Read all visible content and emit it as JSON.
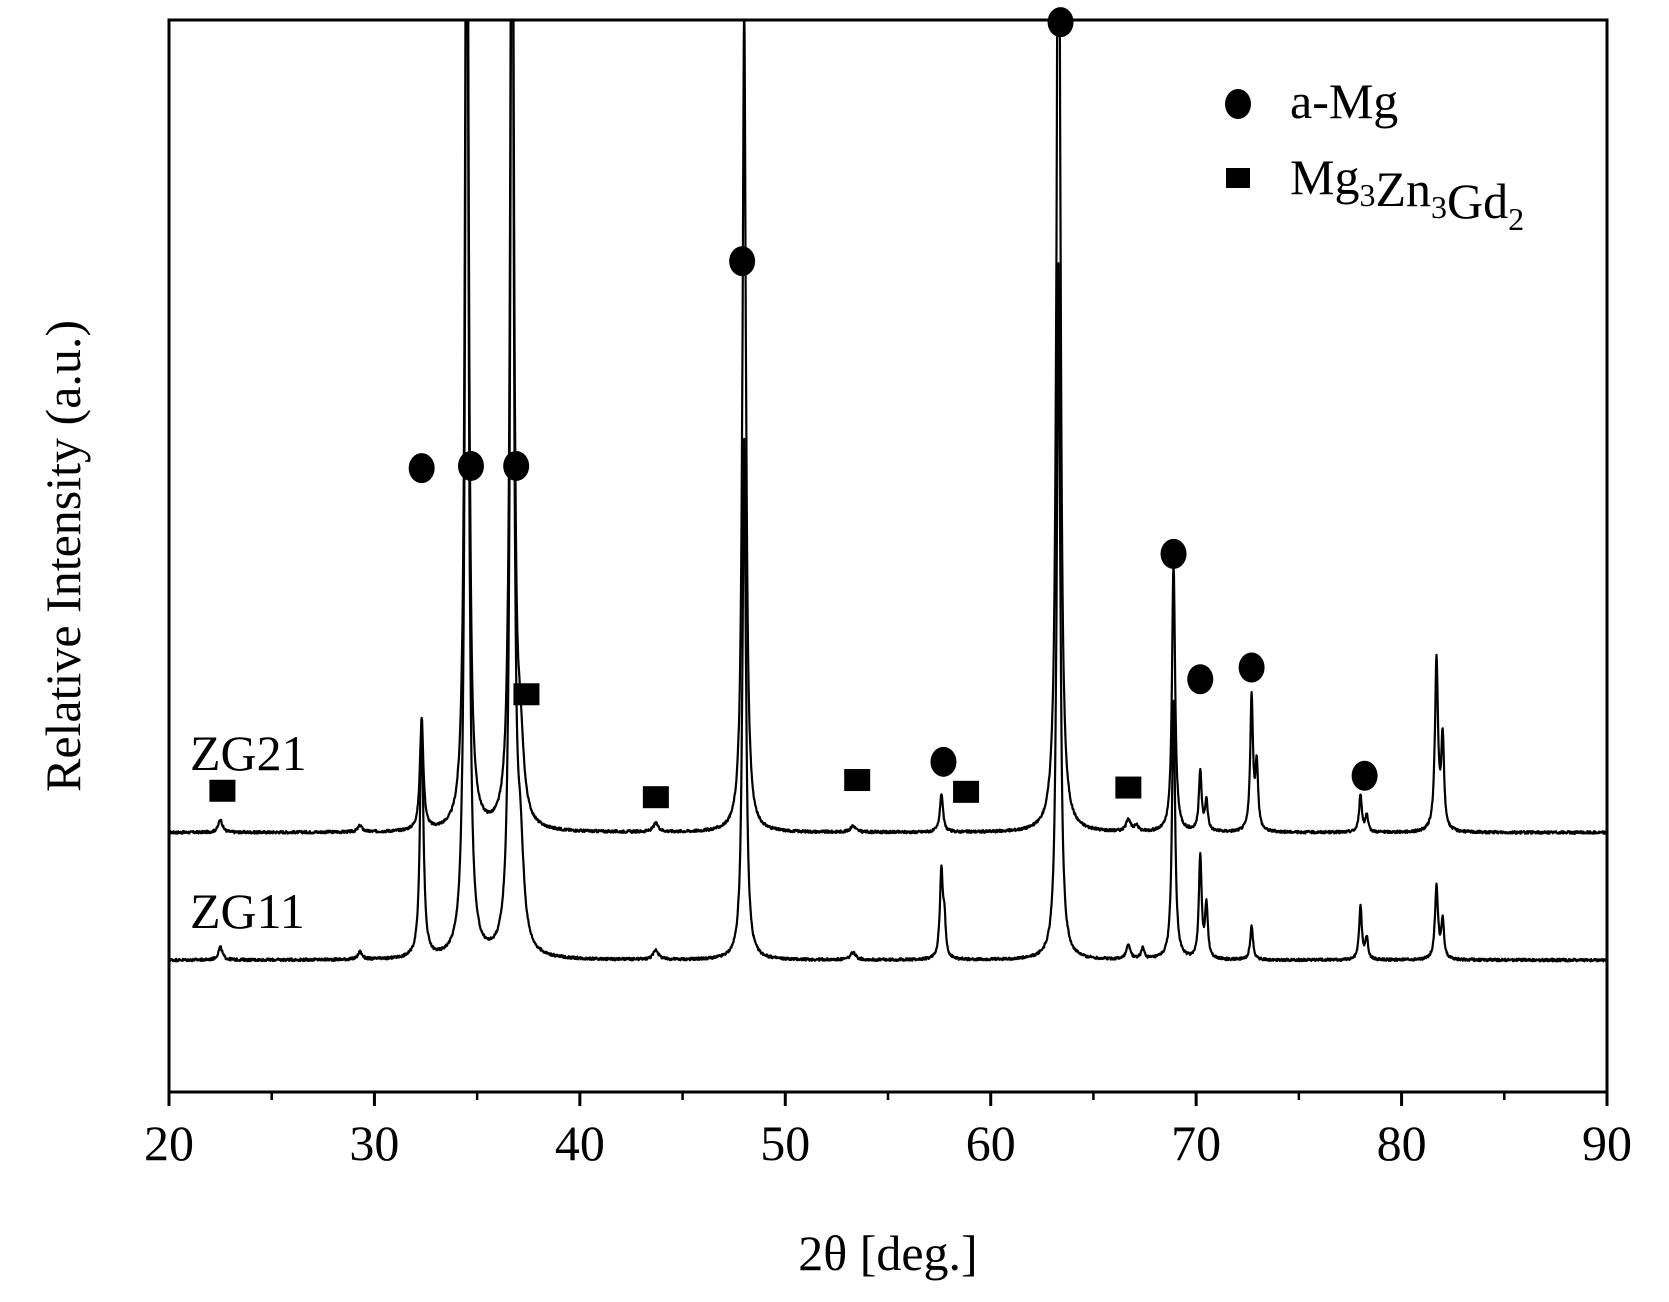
{
  "chart_data": {
    "type": "line",
    "xlabel": "2θ [deg.]",
    "ylabel": "Relative Intensity (a.u.)",
    "xlim": [
      20,
      90
    ],
    "ylim": [
      0,
      100
    ],
    "x_ticks": [
      20,
      30,
      40,
      50,
      60,
      70,
      80,
      90
    ],
    "x_minor_ticks": [
      25,
      35,
      45,
      55,
      65,
      75,
      85
    ],
    "y_ticks_shown": false,
    "grid": false,
    "legend": {
      "placement": "top-right",
      "entries": [
        {
          "marker": "circle",
          "label": "a-Mg"
        },
        {
          "marker": "square",
          "label_parts": [
            {
              "text": "Mg",
              "sub": false
            },
            {
              "text": "3",
              "sub": true
            },
            {
              "text": "Zn",
              "sub": false
            },
            {
              "text": "3",
              "sub": true
            },
            {
              "text": "Gd",
              "sub": false
            },
            {
              "text": "2",
              "sub": true
            }
          ]
        }
      ]
    },
    "series": [
      {
        "name": "ZG21",
        "baseline": 24.2,
        "peaks": [
          {
            "x": 22.5,
            "h": 1.2,
            "w": 0.12
          },
          {
            "x": 29.3,
            "h": 0.6,
            "w": 0.12
          },
          {
            "x": 32.3,
            "h": 10.5,
            "w": 0.1
          },
          {
            "x": 34.5,
            "h": 110,
            "w": 0.1
          },
          {
            "x": 36.7,
            "h": 110,
            "w": 0.1
          },
          {
            "x": 37.1,
            "h": 6.5,
            "w": 0.2
          },
          {
            "x": 43.7,
            "h": 0.8,
            "w": 0.15
          },
          {
            "x": 48.0,
            "h": 77,
            "w": 0.1
          },
          {
            "x": 53.3,
            "h": 0.6,
            "w": 0.15
          },
          {
            "x": 57.6,
            "h": 3.6,
            "w": 0.09
          },
          {
            "x": 63.3,
            "h": 110,
            "w": 0.1
          },
          {
            "x": 66.7,
            "h": 1.2,
            "w": 0.12
          },
          {
            "x": 67.1,
            "h": 0.6,
            "w": 0.1
          },
          {
            "x": 68.9,
            "h": 25,
            "w": 0.09
          },
          {
            "x": 70.2,
            "h": 5.5,
            "w": 0.08
          },
          {
            "x": 70.5,
            "h": 2.8,
            "w": 0.08
          },
          {
            "x": 72.7,
            "h": 12.5,
            "w": 0.08
          },
          {
            "x": 72.95,
            "h": 6,
            "w": 0.08
          },
          {
            "x": 78.0,
            "h": 3.5,
            "w": 0.08
          },
          {
            "x": 78.3,
            "h": 1.5,
            "w": 0.08
          },
          {
            "x": 81.7,
            "h": 16,
            "w": 0.09
          },
          {
            "x": 82.0,
            "h": 8.5,
            "w": 0.08
          }
        ]
      },
      {
        "name": "ZG11",
        "baseline": 12.3,
        "peaks": [
          {
            "x": 22.5,
            "h": 1.2,
            "w": 0.12
          },
          {
            "x": 29.3,
            "h": 0.7,
            "w": 0.12
          },
          {
            "x": 32.3,
            "h": 22,
            "w": 0.1
          },
          {
            "x": 34.5,
            "h": 110,
            "w": 0.1
          },
          {
            "x": 36.7,
            "h": 110,
            "w": 0.1
          },
          {
            "x": 37.1,
            "h": 8.5,
            "w": 0.2
          },
          {
            "x": 43.7,
            "h": 0.9,
            "w": 0.15
          },
          {
            "x": 48.0,
            "h": 48.5,
            "w": 0.1
          },
          {
            "x": 53.3,
            "h": 0.7,
            "w": 0.15
          },
          {
            "x": 57.6,
            "h": 8.2,
            "w": 0.09
          },
          {
            "x": 57.75,
            "h": 3,
            "w": 0.07
          },
          {
            "x": 63.3,
            "h": 65,
            "w": 0.1
          },
          {
            "x": 66.7,
            "h": 1.3,
            "w": 0.12
          },
          {
            "x": 67.4,
            "h": 1.0,
            "w": 0.1
          },
          {
            "x": 68.9,
            "h": 24,
            "w": 0.09
          },
          {
            "x": 70.2,
            "h": 9.5,
            "w": 0.08
          },
          {
            "x": 70.5,
            "h": 5,
            "w": 0.08
          },
          {
            "x": 72.7,
            "h": 3.2,
            "w": 0.08
          },
          {
            "x": 78.0,
            "h": 5,
            "w": 0.08
          },
          {
            "x": 78.3,
            "h": 2,
            "w": 0.08
          },
          {
            "x": 81.7,
            "h": 6.8,
            "w": 0.09
          },
          {
            "x": 82.0,
            "h": 3.5,
            "w": 0.08
          }
        ]
      }
    ],
    "annotations": {
      "circle_markers": [
        {
          "x": 32.3,
          "y": 58.2
        },
        {
          "x": 34.7,
          "y": 58.4
        },
        {
          "x": 36.9,
          "y": 58.4
        },
        {
          "x": 47.9,
          "y": 77.5
        },
        {
          "x": 63.4,
          "y": 99.8
        },
        {
          "x": 57.7,
          "y": 30.8
        },
        {
          "x": 68.9,
          "y": 50.2
        },
        {
          "x": 70.2,
          "y": 38.5
        },
        {
          "x": 72.7,
          "y": 39.6
        },
        {
          "x": 78.2,
          "y": 29.5
        }
      ],
      "square_markers": [
        {
          "x": 22.6,
          "y": 28.1
        },
        {
          "x": 37.4,
          "y": 37.1
        },
        {
          "x": 43.7,
          "y": 27.5
        },
        {
          "x": 53.5,
          "y": 29.1
        },
        {
          "x": 58.8,
          "y": 28.0
        },
        {
          "x": 66.7,
          "y": 28.4
        }
      ]
    }
  }
}
